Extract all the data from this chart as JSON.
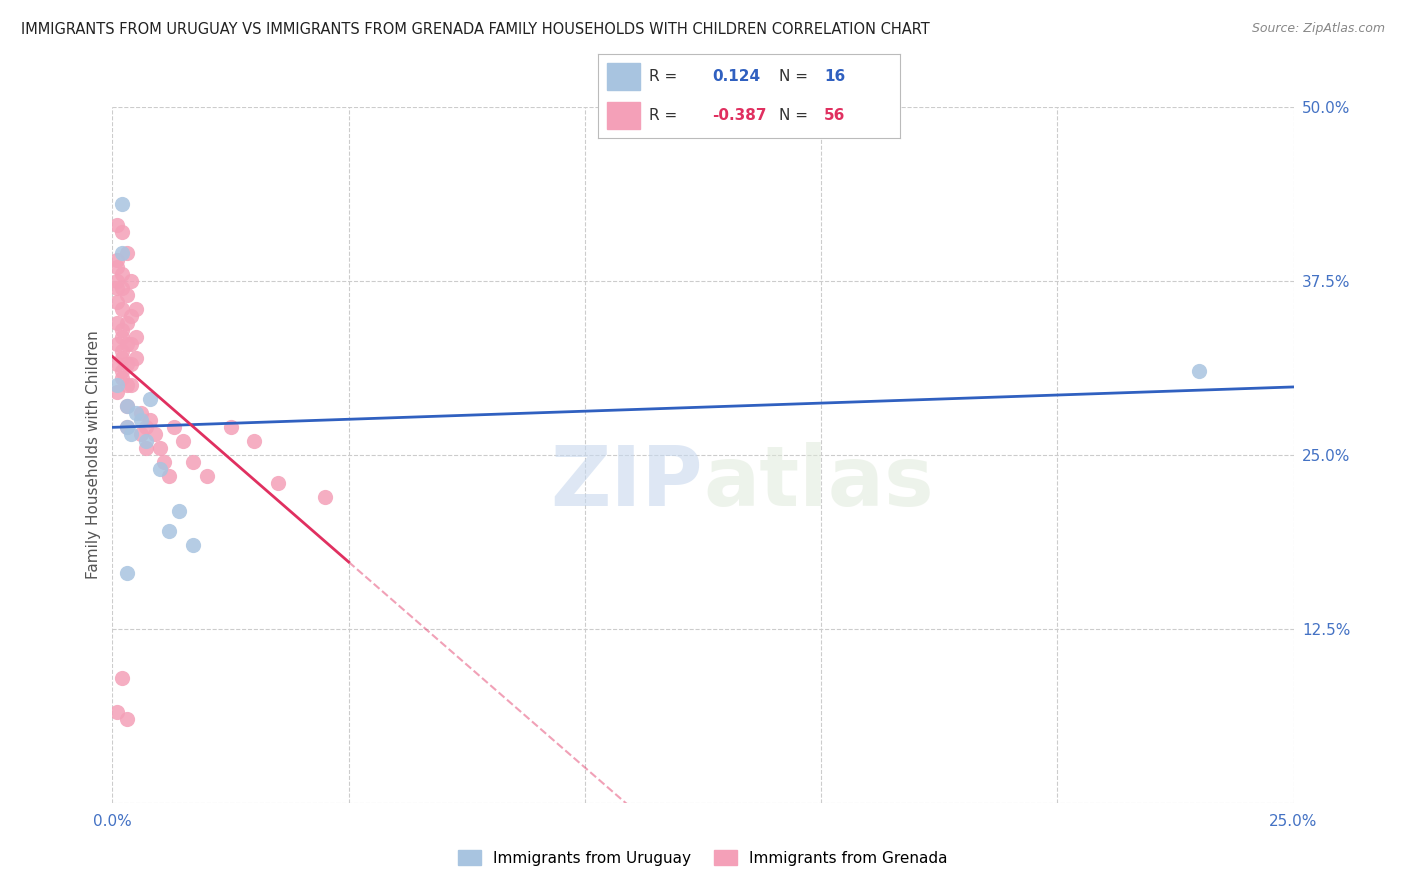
{
  "title": "IMMIGRANTS FROM URUGUAY VS IMMIGRANTS FROM GRENADA FAMILY HOUSEHOLDS WITH CHILDREN CORRELATION CHART",
  "source": "Source: ZipAtlas.com",
  "ylabel": "Family Households with Children",
  "x_min": 0.0,
  "x_max": 0.25,
  "y_min": 0.0,
  "y_max": 0.5,
  "x_ticks": [
    0.0,
    0.05,
    0.1,
    0.15,
    0.2,
    0.25
  ],
  "x_tick_labels": [
    "0.0%",
    "",
    "",
    "",
    "",
    "25.0%"
  ],
  "y_ticks": [
    0.0,
    0.125,
    0.25,
    0.375,
    0.5
  ],
  "y_tick_labels": [
    "",
    "12.5%",
    "25.0%",
    "37.5%",
    "50.0%"
  ],
  "r_uruguay": 0.124,
  "n_uruguay": 16,
  "r_grenada": -0.387,
  "n_grenada": 56,
  "color_uruguay": "#a8c4e0",
  "color_grenada": "#f4a0b8",
  "line_color_uruguay": "#3060c0",
  "line_color_grenada": "#e03060",
  "watermark_zip": "ZIP",
  "watermark_atlas": "atlas",
  "uruguay_x": [
    0.001,
    0.002,
    0.002,
    0.003,
    0.003,
    0.004,
    0.005,
    0.006,
    0.007,
    0.008,
    0.01,
    0.012,
    0.014,
    0.017,
    0.23,
    0.003
  ],
  "uruguay_y": [
    0.3,
    0.43,
    0.395,
    0.285,
    0.27,
    0.265,
    0.28,
    0.275,
    0.26,
    0.29,
    0.24,
    0.195,
    0.21,
    0.185,
    0.31,
    0.165
  ],
  "grenada_x": [
    0.001,
    0.001,
    0.001,
    0.001,
    0.001,
    0.001,
    0.001,
    0.001,
    0.001,
    0.001,
    0.002,
    0.002,
    0.002,
    0.002,
    0.002,
    0.002,
    0.002,
    0.002,
    0.002,
    0.002,
    0.003,
    0.003,
    0.003,
    0.003,
    0.003,
    0.003,
    0.003,
    0.003,
    0.004,
    0.004,
    0.004,
    0.004,
    0.004,
    0.005,
    0.005,
    0.005,
    0.006,
    0.006,
    0.007,
    0.007,
    0.008,
    0.009,
    0.01,
    0.011,
    0.012,
    0.013,
    0.015,
    0.017,
    0.02,
    0.025,
    0.03,
    0.035,
    0.045,
    0.002,
    0.003,
    0.001
  ],
  "grenada_y": [
    0.415,
    0.39,
    0.37,
    0.345,
    0.33,
    0.315,
    0.295,
    0.385,
    0.375,
    0.36,
    0.41,
    0.38,
    0.355,
    0.335,
    0.32,
    0.305,
    0.37,
    0.34,
    0.325,
    0.31,
    0.395,
    0.365,
    0.345,
    0.33,
    0.315,
    0.3,
    0.285,
    0.27,
    0.375,
    0.35,
    0.33,
    0.315,
    0.3,
    0.355,
    0.335,
    0.32,
    0.28,
    0.265,
    0.27,
    0.255,
    0.275,
    0.265,
    0.255,
    0.245,
    0.235,
    0.27,
    0.26,
    0.245,
    0.235,
    0.27,
    0.26,
    0.23,
    0.22,
    0.09,
    0.06,
    0.065
  ]
}
